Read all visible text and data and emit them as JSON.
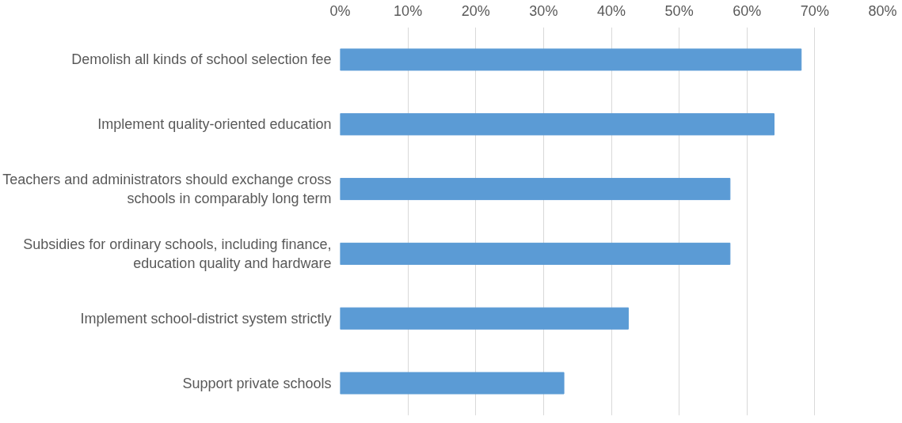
{
  "chart_data": {
    "type": "bar",
    "orientation": "horizontal",
    "categories": [
      "Demolish all kinds of school selection fee",
      "Implement quality-oriented education",
      "Teachers and administrators should exchange cross schools in comparably long term",
      "Subsidies for ordinary schools, including finance, education quality and hardware",
      "Implement school-district system strictly",
      "Support private schools"
    ],
    "values": [
      68,
      64,
      57.5,
      57.5,
      42.5,
      33
    ],
    "color": "#5b9bd5",
    "xlim": [
      0,
      80
    ],
    "xticks": [
      {
        "value": 0,
        "label": "0%"
      },
      {
        "value": 10,
        "label": "10%"
      },
      {
        "value": 20,
        "label": "20%"
      },
      {
        "value": 30,
        "label": "30%"
      },
      {
        "value": 40,
        "label": "40%"
      },
      {
        "value": 50,
        "label": "50%"
      },
      {
        "value": 60,
        "label": "60%"
      },
      {
        "value": 70,
        "label": "70%"
      },
      {
        "value": 80,
        "label": "80%"
      }
    ],
    "grid": "x"
  }
}
